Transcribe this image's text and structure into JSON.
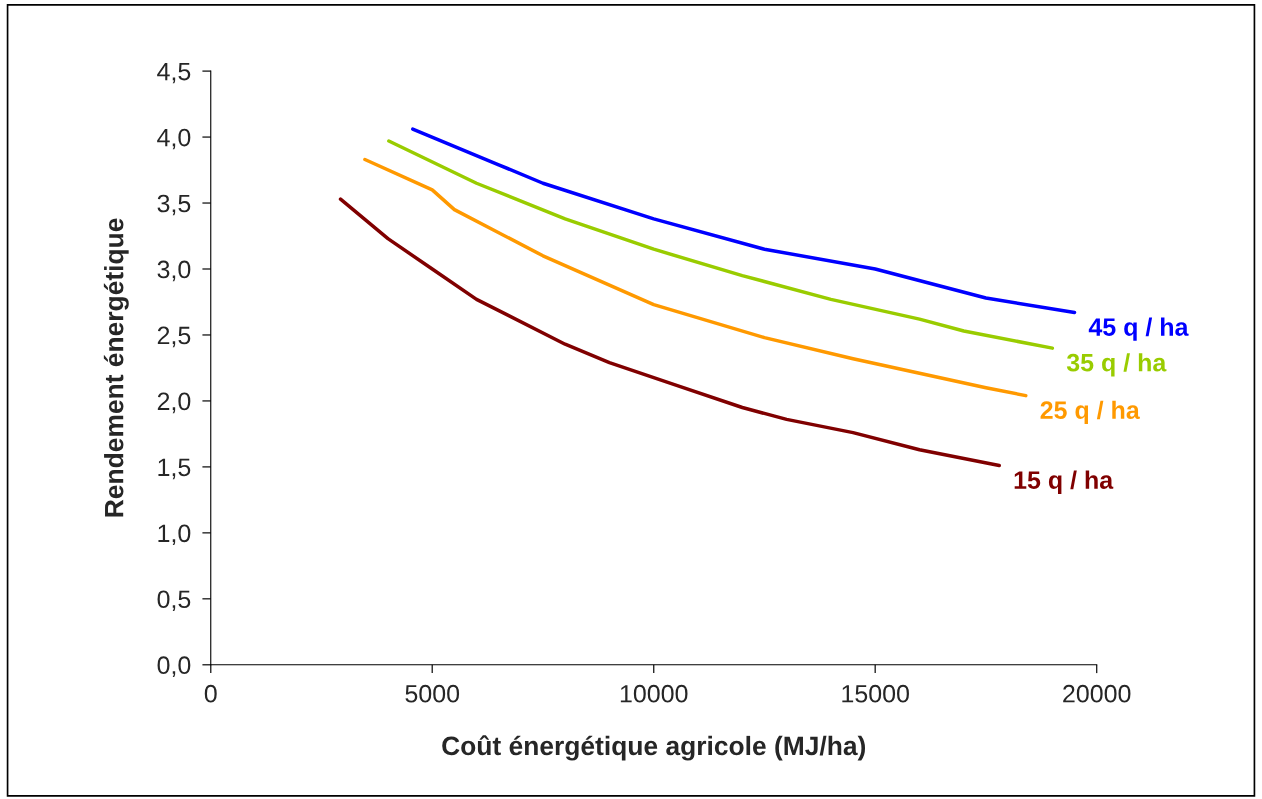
{
  "chart_data": {
    "type": "line",
    "xlabel": "Coût énergétique agricole (MJ/ha)",
    "ylabel": "Rendement énergétique",
    "xlim": [
      0,
      20000
    ],
    "xticks": [
      0,
      5000,
      10000,
      15000,
      20000
    ],
    "ylim": [
      0,
      4.5
    ],
    "yticks": [
      {
        "value": 0,
        "label": "0,0"
      },
      {
        "value": 0.5,
        "label": "0,5"
      },
      {
        "value": 1,
        "label": "1,0"
      },
      {
        "value": 1.5,
        "label": "1,5"
      },
      {
        "value": 2,
        "label": "2,0"
      },
      {
        "value": 2.5,
        "label": "2,5"
      },
      {
        "value": 3,
        "label": "3,0"
      },
      {
        "value": 3.5,
        "label": "3,5"
      },
      {
        "value": 4,
        "label": "4,0"
      },
      {
        "value": 4.5,
        "label": "4,5"
      }
    ],
    "grid": false,
    "legend": false,
    "marker": "none",
    "line_style": "solid",
    "series": [
      {
        "name": "45 q / ha",
        "color": "#0000ff",
        "x": [
          4560,
          6500,
          7500,
          10000,
          12500,
          15000,
          17500,
          19500
        ],
        "values": [
          4.06,
          3.79,
          3.65,
          3.38,
          3.15,
          3.0,
          2.78,
          2.67
        ]
      },
      {
        "name": "35 q / ha",
        "color": "#99cc00",
        "x": [
          4020,
          6000,
          8000,
          10000,
          12000,
          14000,
          16000,
          17000,
          19000
        ],
        "values": [
          3.97,
          3.65,
          3.38,
          3.15,
          2.95,
          2.77,
          2.62,
          2.53,
          2.4
        ]
      },
      {
        "name": "25 q / ha",
        "color": "#ff9900",
        "x": [
          3480,
          5000,
          5500,
          7500,
          10000,
          12500,
          14500,
          17500,
          18400
        ],
        "values": [
          3.83,
          3.6,
          3.45,
          3.1,
          2.73,
          2.48,
          2.32,
          2.1,
          2.04
        ]
      },
      {
        "name": "15 q / ha",
        "color": "#800000",
        "x": [
          2930,
          4000,
          5000,
          6000,
          8000,
          9000,
          10500,
          12000,
          13000,
          14500,
          16000,
          17800
        ],
        "values": [
          3.53,
          3.23,
          3.0,
          2.77,
          2.43,
          2.29,
          2.12,
          1.95,
          1.86,
          1.76,
          1.63,
          1.51
        ]
      }
    ]
  }
}
